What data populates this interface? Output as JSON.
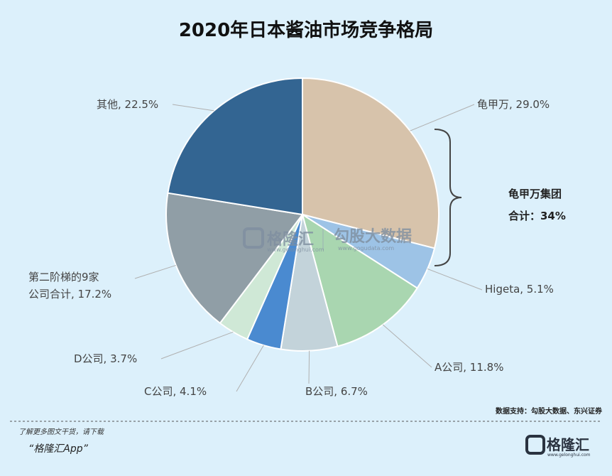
{
  "title": "2020年日本酱油市场竞争格局",
  "chart_data": {
    "type": "pie",
    "title": "2020年日本酱油市场竞争格局",
    "start_angle_deg": 0,
    "direction": "clockwise",
    "slices": [
      {
        "name": "龟甲万",
        "value": 29.0,
        "label": "龟甲万, 29.0%",
        "color": "#d7c3ab"
      },
      {
        "name": "Higeta",
        "value": 5.1,
        "label": "Higeta, 5.1%",
        "color": "#9dc3e6"
      },
      {
        "name": "A公司",
        "value": 11.8,
        "label": "A公司, 11.8%",
        "color": "#a9d6b0"
      },
      {
        "name": "B公司",
        "value": 6.7,
        "label": "B公司, 6.7%",
        "color": "#c3d3da"
      },
      {
        "name": "C公司",
        "value": 4.1,
        "label": "C公司, 4.1%",
        "color": "#4a8ad0"
      },
      {
        "name": "D公司",
        "value": 3.7,
        "label": "D公司, 3.7%",
        "color": "#cfe8d6"
      },
      {
        "name": "第二阶梯的9家公司合计",
        "value": 17.2,
        "label_lines": [
          "第二阶梯的9家",
          "公司合计, 17.2%"
        ],
        "color": "#909ea6"
      },
      {
        "name": "其他",
        "value": 22.5,
        "label": "其他, 22.5%",
        "color": "#336592"
      }
    ],
    "annotation": {
      "lines": [
        "龟甲万集团",
        "合计：34%"
      ],
      "covers": [
        "龟甲万",
        "Higeta"
      ]
    }
  },
  "watermark": {
    "brand": "格隆汇",
    "partner": "勾股大数据",
    "url": "www.gogudata.com",
    "sub": "www.gelonghui.com"
  },
  "source": "数据支持：勾股大数据、东兴证券",
  "footer": {
    "small": "了解更多图文干货，请下载",
    "app": "“格隆汇App”"
  },
  "logo": {
    "text": "格隆汇",
    "sub": "www.gelonghui.com"
  }
}
